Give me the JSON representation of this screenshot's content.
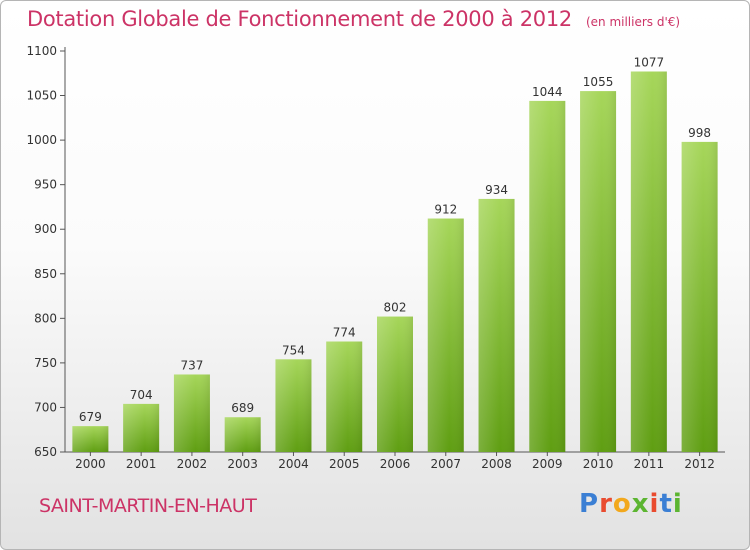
{
  "header": {
    "title": "Dotation Globale de Fonctionnement de 2000 à 2012",
    "unit": "(en milliers d'€)"
  },
  "footer": {
    "commune": "SAINT-MARTIN-EN-HAUT",
    "logo_letters": [
      {
        "char": "P",
        "color": "#3b7fd4"
      },
      {
        "char": "r",
        "color": "#e94b2f"
      },
      {
        "char": "o",
        "color": "#f2a81d"
      },
      {
        "char": "x",
        "color": "#5cb531"
      },
      {
        "char": "i",
        "color": "#e94b2f"
      },
      {
        "char": "t",
        "color": "#3b7fd4"
      },
      {
        "char": "i",
        "color": "#5cb531"
      }
    ]
  },
  "chart_data": {
    "type": "bar",
    "title": "Dotation Globale de Fonctionnement de 2000 à 2012",
    "subtitle": "(en milliers d'€)",
    "categories": [
      "2000",
      "2001",
      "2002",
      "2003",
      "2004",
      "2005",
      "2006",
      "2007",
      "2008",
      "2009",
      "2010",
      "2011",
      "2012"
    ],
    "values": [
      679,
      704,
      737,
      689,
      754,
      774,
      802,
      912,
      934,
      1044,
      1055,
      1077,
      998
    ],
    "ylim": [
      650,
      1100
    ],
    "yticks": [
      650,
      700,
      750,
      800,
      850,
      900,
      950,
      1000,
      1050,
      1100
    ],
    "grid": false,
    "colors": {
      "bar_top": "#a6d65a",
      "bar_bottom": "#5f9e12",
      "axis": "#555555"
    }
  }
}
